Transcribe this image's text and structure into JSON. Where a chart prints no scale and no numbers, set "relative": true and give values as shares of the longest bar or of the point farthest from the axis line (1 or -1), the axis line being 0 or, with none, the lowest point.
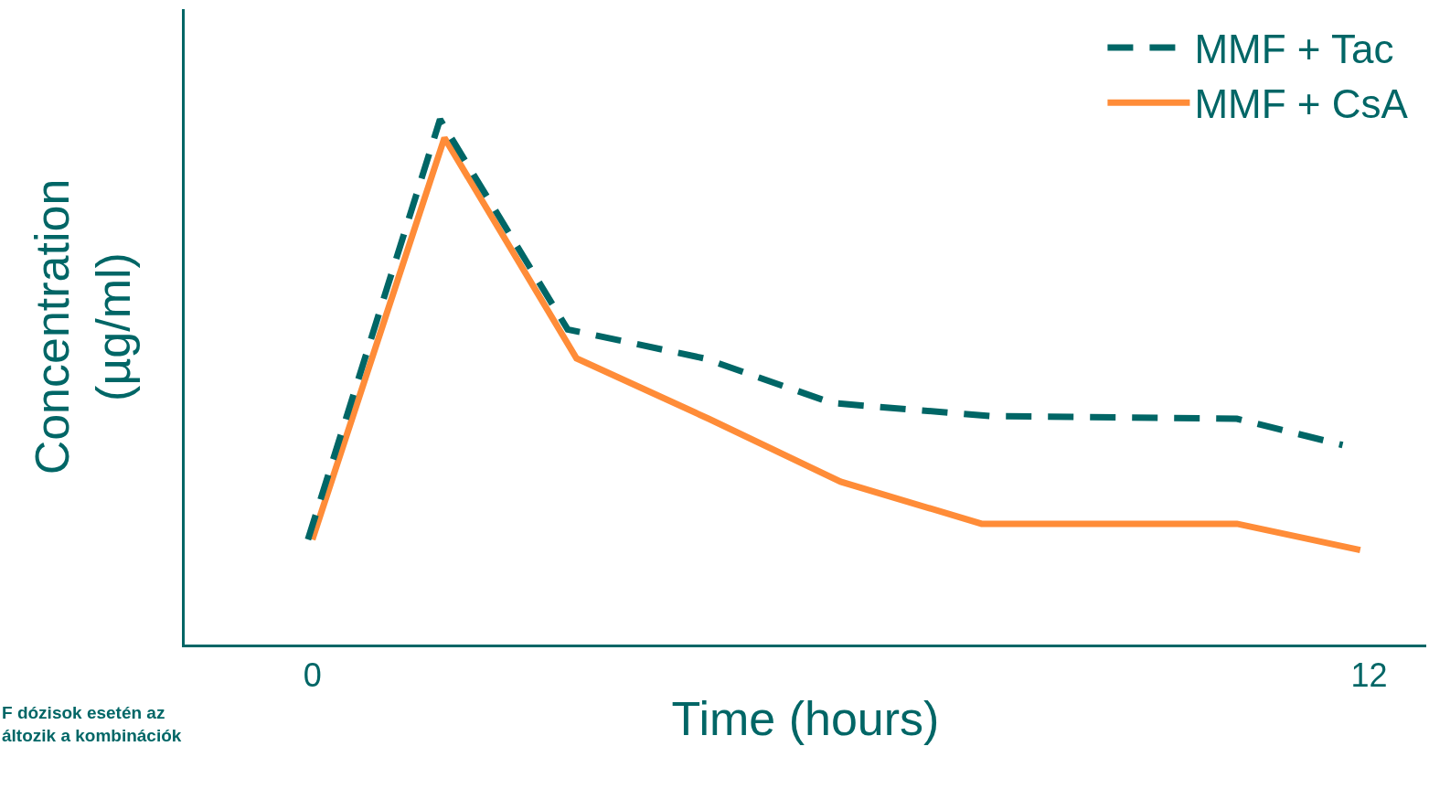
{
  "chart_data": {
    "type": "line",
    "relative": true,
    "xlabel": "Time (hours)",
    "ylabel": "Concentration\n(µg/ml)",
    "xlim": [
      -1.45,
      12.65
    ],
    "xticks": [
      0,
      12
    ],
    "series": [
      {
        "name": "MMF + Tac",
        "color": "#006666",
        "line_style": "dashed",
        "x": [
          -0.05,
          1.45,
          2.9,
          4.45,
          5.9,
          7.7,
          10.5,
          11.7
        ],
        "values": [
          0.2,
          1.0,
          0.6,
          0.545,
          0.46,
          0.435,
          0.43,
          0.38
        ]
      },
      {
        "name": "MMF + CsA",
        "color": "#ff8c38",
        "line_style": "solid",
        "x": [
          0,
          1.5,
          3,
          4.5,
          6,
          7.6,
          10.5,
          11.9
        ],
        "values": [
          0.2,
          0.965,
          0.545,
          0.43,
          0.31,
          0.23,
          0.23,
          0.18
        ]
      }
    ],
    "legend": "top right",
    "marker": "none",
    "annotations": [
      "F dózisok esetén az\náltozik a kombinációk"
    ]
  }
}
